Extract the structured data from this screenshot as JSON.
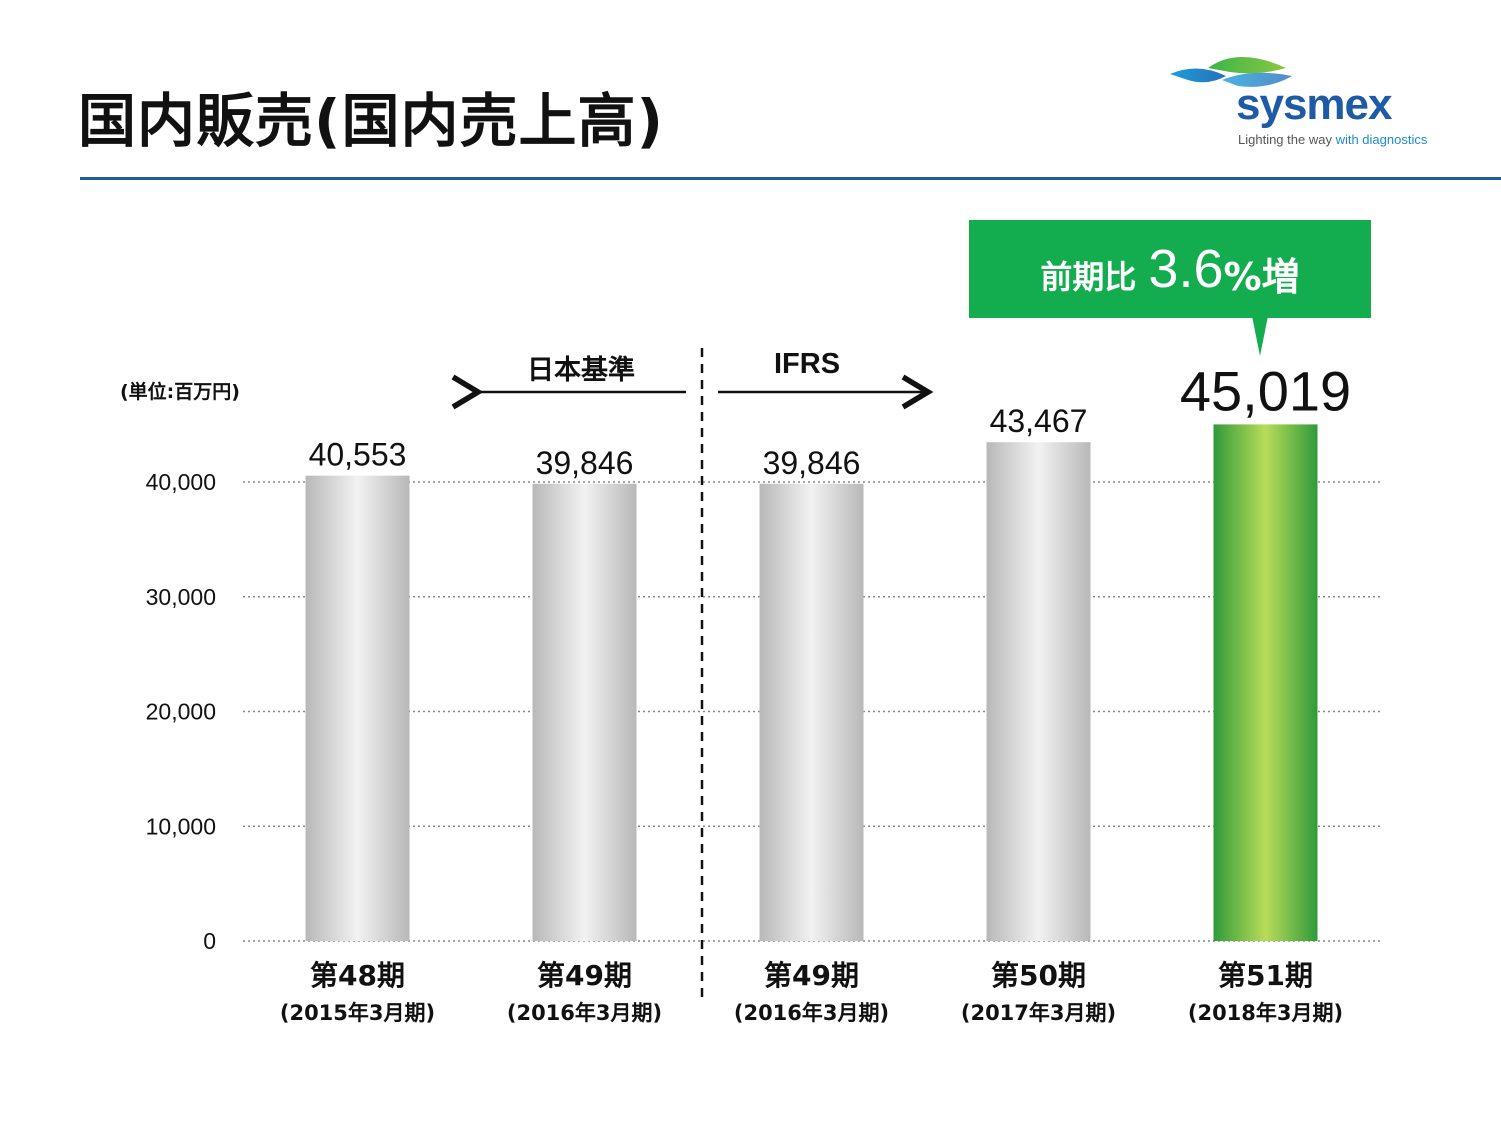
{
  "header": {
    "title": "国内販売(国内売上高)"
  },
  "logo": {
    "brand": "sysmex",
    "tagline_main": "Lighting the way",
    "tagline_highlight": "with diagnostics"
  },
  "callout": {
    "label": "前期比",
    "value": "3.6",
    "suffix": "%増"
  },
  "standards": {
    "left": "日本基準",
    "right": "IFRS"
  },
  "chart_data": {
    "type": "bar",
    "unit_label": "(単位:百万円)",
    "categories": [
      "第48期",
      "第49期",
      "第49期",
      "第50期",
      "第51期"
    ],
    "sub_labels": [
      "(2015年3月期)",
      "(2016年3月期)",
      "(2016年3月期)",
      "(2017年3月期)",
      "(2018年3月期)"
    ],
    "values": [
      40553,
      39846,
      39846,
      43467,
      45019
    ],
    "value_labels": [
      "40,553",
      "39,846",
      "39,846",
      "43,467",
      "45,019"
    ],
    "highlight_index": 4,
    "ylim": [
      0,
      40000
    ],
    "yticks": [
      0,
      10000,
      20000,
      30000,
      40000
    ],
    "ytick_labels": [
      "0",
      "10,000",
      "20,000",
      "30,000",
      "40,000"
    ],
    "grid": true,
    "colors": {
      "bar_gray_edge": "#b8b8b8",
      "bar_gray_center": "#f2f2f2",
      "bar_green_edge": "#2f9a3a",
      "bar_green_center": "#b9dc5a",
      "callout": "#13ad4f",
      "rule": "#1f5d9e"
    }
  }
}
